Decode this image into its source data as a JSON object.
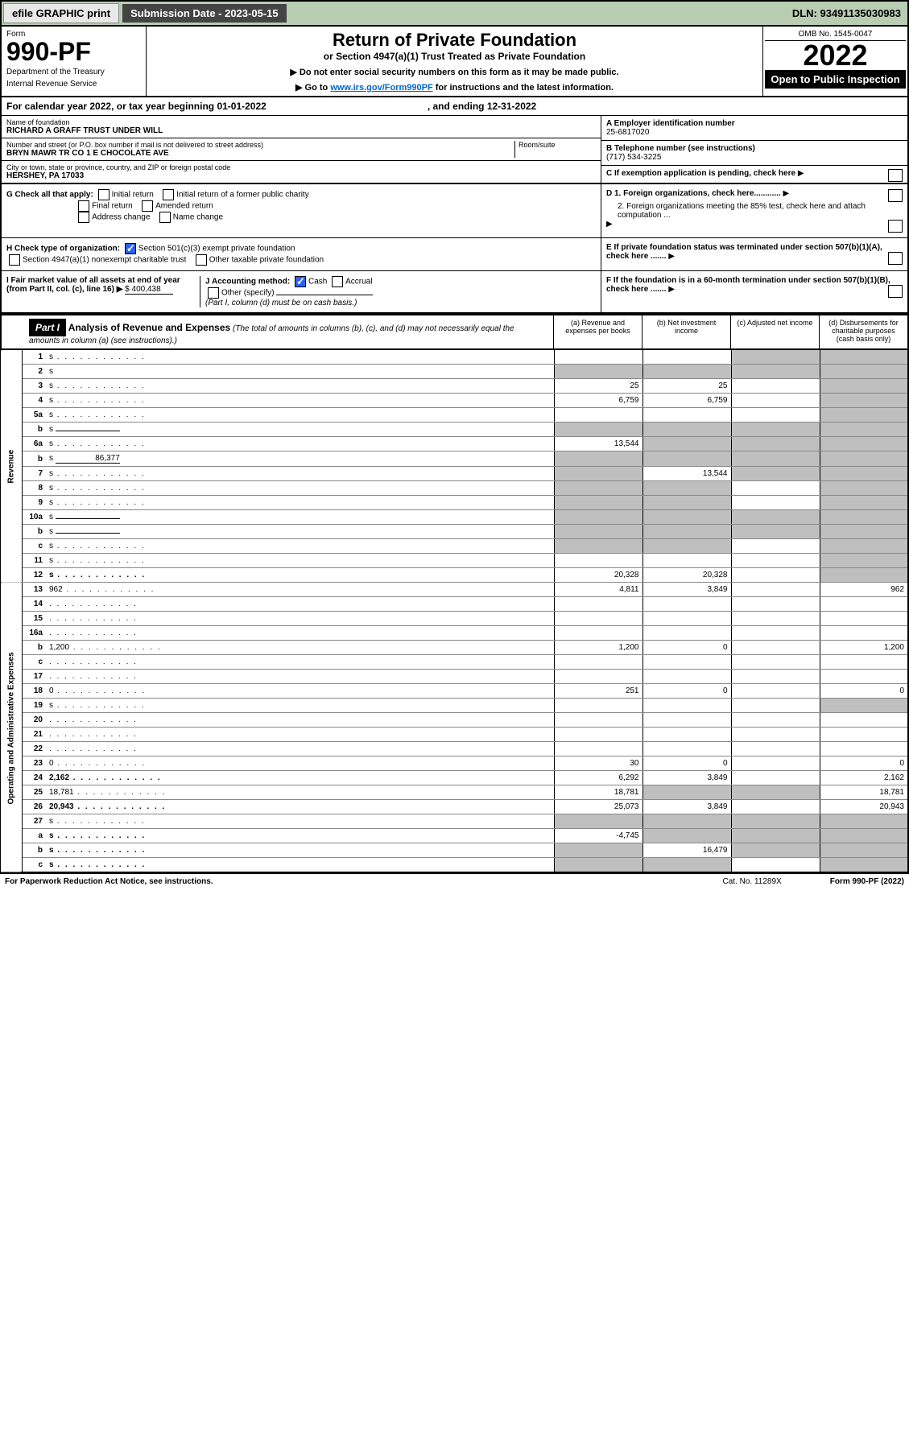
{
  "topbar": {
    "efile": "efile GRAPHIC print",
    "submission_label": "Submission Date - 2023-05-15",
    "dln": "DLN: 93491135030983"
  },
  "header": {
    "form_label": "Form",
    "form_number": "990-PF",
    "dept": "Department of the Treasury",
    "irs": "Internal Revenue Service",
    "title": "Return of Private Foundation",
    "subtitle": "or Section 4947(a)(1) Trust Treated as Private Foundation",
    "instr1": "▶ Do not enter social security numbers on this form as it may be made public.",
    "instr2a": "▶ Go to ",
    "instr2_link": "www.irs.gov/Form990PF",
    "instr2b": " for instructions and the latest information.",
    "omb": "OMB No. 1545-0047",
    "year": "2022",
    "open_public": "Open to Public Inspection"
  },
  "cal_year": {
    "text": "For calendar year 2022, or tax year beginning 01-01-2022",
    "ending": ", and ending 12-31-2022"
  },
  "foundation": {
    "name_label": "Name of foundation",
    "name": "RICHARD A GRAFF TRUST UNDER WILL",
    "addr_label": "Number and street (or P.O. box number if mail is not delivered to street address)",
    "addr": "BRYN MAWR TR CO 1 E CHOCOLATE AVE",
    "room_label": "Room/suite",
    "city_label": "City or town, state or province, country, and ZIP or foreign postal code",
    "city": "HERSHEY, PA  17033",
    "ein_label": "A Employer identification number",
    "ein": "25-6817020",
    "phone_label": "B Telephone number (see instructions)",
    "phone": "(717) 534-3225",
    "c_label": "C If exemption application is pending, check here",
    "d1": "D 1. Foreign organizations, check here............",
    "d2": "2. Foreign organizations meeting the 85% test, check here and attach computation ...",
    "e_label": "E  If private foundation status was terminated under section 507(b)(1)(A), check here .......",
    "f_label": "F  If the foundation is in a 60-month termination under section 507(b)(1)(B), check here .......",
    "g_label": "G Check all that apply:",
    "g_opts": [
      "Initial return",
      "Initial return of a former public charity",
      "Final return",
      "Amended return",
      "Address change",
      "Name change"
    ],
    "h_label": "H Check type of organization:",
    "h1": "Section 501(c)(3) exempt private foundation",
    "h2": "Section 4947(a)(1) nonexempt charitable trust",
    "h3": "Other taxable private foundation",
    "i_label": "I Fair market value of all assets at end of year (from Part II, col. (c), line 16) ▶",
    "i_value": "$  400,438",
    "j_label": "J Accounting method:",
    "j_cash": "Cash",
    "j_accrual": "Accrual",
    "j_other": "Other (specify)",
    "j_note": "(Part I, column (d) must be on cash basis.)"
  },
  "part1": {
    "label": "Part I",
    "title": "Analysis of Revenue and Expenses",
    "note": "(The total of amounts in columns (b), (c), and (d) may not necessarily equal the amounts in column (a) (see instructions).)",
    "col_a": "(a)   Revenue and expenses per books",
    "col_b": "(b)   Net investment income",
    "col_c": "(c)   Adjusted net income",
    "col_d": "(d)   Disbursements for charitable purposes (cash basis only)",
    "side_revenue": "Revenue",
    "side_expenses": "Operating and Administrative Expenses"
  },
  "rows": [
    {
      "n": "1",
      "d": "s",
      "a": "",
      "b": "",
      "c": "s"
    },
    {
      "n": "2",
      "d": "s",
      "a": "s",
      "b": "s",
      "c": "s",
      "nodots": true
    },
    {
      "n": "3",
      "d": "s",
      "a": "25",
      "b": "25",
      "c": ""
    },
    {
      "n": "4",
      "d": "s",
      "a": "6,759",
      "b": "6,759",
      "c": ""
    },
    {
      "n": "5a",
      "d": "s",
      "a": "",
      "b": "",
      "c": ""
    },
    {
      "n": "b",
      "d": "s",
      "a": "s",
      "b": "s",
      "c": "s",
      "inline": true
    },
    {
      "n": "6a",
      "d": "s",
      "a": "13,544",
      "b": "s",
      "c": "s"
    },
    {
      "n": "b",
      "d": "s",
      "a": "s",
      "b": "s",
      "c": "s",
      "inline": true,
      "inlineval": "86,377"
    },
    {
      "n": "7",
      "d": "s",
      "a": "s",
      "b": "13,544",
      "c": "s"
    },
    {
      "n": "8",
      "d": "s",
      "a": "s",
      "b": "s",
      "c": ""
    },
    {
      "n": "9",
      "d": "s",
      "a": "s",
      "b": "s",
      "c": ""
    },
    {
      "n": "10a",
      "d": "s",
      "a": "s",
      "b": "s",
      "c": "s",
      "inline": true
    },
    {
      "n": "b",
      "d": "s",
      "a": "s",
      "b": "s",
      "c": "s",
      "inline": true
    },
    {
      "n": "c",
      "d": "s",
      "a": "s",
      "b": "s",
      "c": ""
    },
    {
      "n": "11",
      "d": "s",
      "a": "",
      "b": "",
      "c": ""
    },
    {
      "n": "12",
      "d": "s",
      "a": "20,328",
      "b": "20,328",
      "c": "",
      "bold": true
    },
    {
      "n": "13",
      "d": "962",
      "a": "4,811",
      "b": "3,849",
      "c": ""
    },
    {
      "n": "14",
      "d": "",
      "a": "",
      "b": "",
      "c": ""
    },
    {
      "n": "15",
      "d": "",
      "a": "",
      "b": "",
      "c": ""
    },
    {
      "n": "16a",
      "d": "",
      "a": "",
      "b": "",
      "c": ""
    },
    {
      "n": "b",
      "d": "1,200",
      "a": "1,200",
      "b": "0",
      "c": ""
    },
    {
      "n": "c",
      "d": "",
      "a": "",
      "b": "",
      "c": ""
    },
    {
      "n": "17",
      "d": "",
      "a": "",
      "b": "",
      "c": ""
    },
    {
      "n": "18",
      "d": "0",
      "a": "251",
      "b": "0",
      "c": ""
    },
    {
      "n": "19",
      "d": "s",
      "a": "",
      "b": "",
      "c": ""
    },
    {
      "n": "20",
      "d": "",
      "a": "",
      "b": "",
      "c": ""
    },
    {
      "n": "21",
      "d": "",
      "a": "",
      "b": "",
      "c": ""
    },
    {
      "n": "22",
      "d": "",
      "a": "",
      "b": "",
      "c": ""
    },
    {
      "n": "23",
      "d": "0",
      "a": "30",
      "b": "0",
      "c": ""
    },
    {
      "n": "24",
      "d": "2,162",
      "a": "6,292",
      "b": "3,849",
      "c": "",
      "bold": true
    },
    {
      "n": "25",
      "d": "18,781",
      "a": "18,781",
      "b": "s",
      "c": "s"
    },
    {
      "n": "26",
      "d": "20,943",
      "a": "25,073",
      "b": "3,849",
      "c": "",
      "bold": true
    },
    {
      "n": "27",
      "d": "s",
      "a": "s",
      "b": "s",
      "c": "s"
    },
    {
      "n": "a",
      "d": "s",
      "a": "-4,745",
      "b": "s",
      "c": "s",
      "bold": true
    },
    {
      "n": "b",
      "d": "s",
      "a": "s",
      "b": "16,479",
      "c": "s",
      "bold": true
    },
    {
      "n": "c",
      "d": "s",
      "a": "s",
      "b": "s",
      "c": "",
      "bold": true
    }
  ],
  "footer": {
    "paperwork": "For Paperwork Reduction Act Notice, see instructions.",
    "cat": "Cat. No. 11289X",
    "form": "Form 990-PF (2022)"
  }
}
